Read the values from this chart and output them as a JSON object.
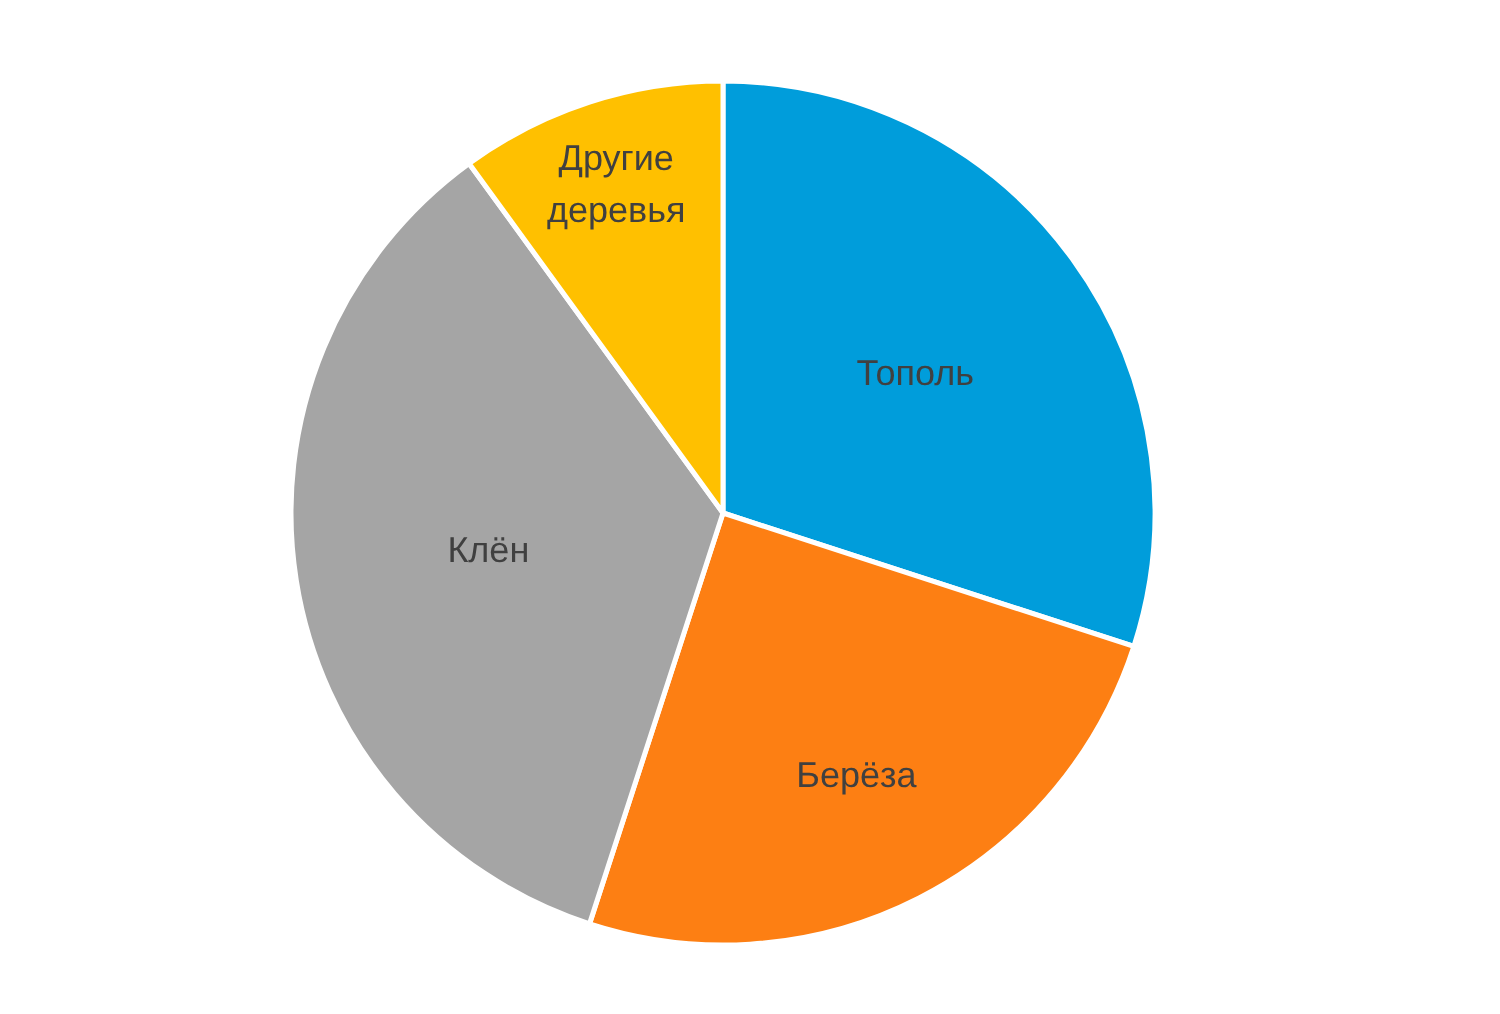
{
  "chart_data": {
    "type": "pie",
    "categories": [
      "Тополь",
      "Берёза",
      "Клён",
      "Другие деревья"
    ],
    "values": [
      30,
      25,
      35,
      10
    ],
    "colors": [
      "#009ddb",
      "#fd7f13",
      "#a5a5a5",
      "#ffc000"
    ]
  }
}
